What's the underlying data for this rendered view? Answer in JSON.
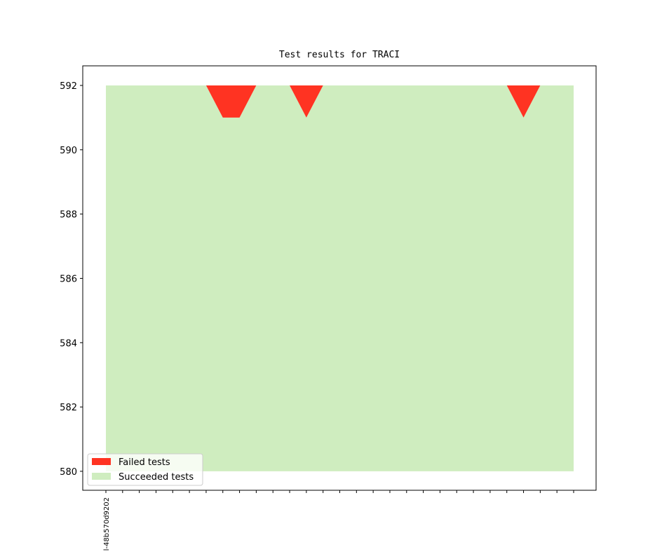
{
  "chart_data": {
    "type": "area",
    "title": "Test results for TRACI",
    "categories": [
      "l-48b570d9202",
      null,
      null,
      null,
      null,
      null,
      null,
      null,
      null,
      null,
      null,
      null,
      null,
      null,
      null,
      null,
      null,
      null,
      null,
      null,
      null,
      null,
      null,
      null,
      null,
      null,
      null,
      null,
      null
    ],
    "baseline": 580,
    "series": [
      {
        "name": "Failed tests",
        "color": "#ff3322",
        "values": [
          0,
          0,
          0,
          0,
          0,
          0,
          0,
          1,
          1,
          0,
          0,
          0,
          1,
          0,
          0,
          0,
          0,
          0,
          0,
          0,
          0,
          0,
          0,
          0,
          0,
          1,
          0,
          0,
          0
        ]
      },
      {
        "name": "Succeeded tests",
        "color": "#cfedbf",
        "values": [
          592,
          592,
          592,
          592,
          592,
          592,
          592,
          591,
          591,
          592,
          592,
          592,
          591,
          592,
          592,
          592,
          592,
          592,
          592,
          592,
          592,
          592,
          592,
          592,
          592,
          591,
          592,
          592,
          592
        ]
      }
    ],
    "stack_order": [
      "Succeeded tests",
      "Failed tests"
    ],
    "ylim": [
      579.41,
      592.61
    ],
    "yticks": [
      580,
      582,
      584,
      586,
      588,
      590,
      592
    ],
    "legend": "lower left"
  }
}
